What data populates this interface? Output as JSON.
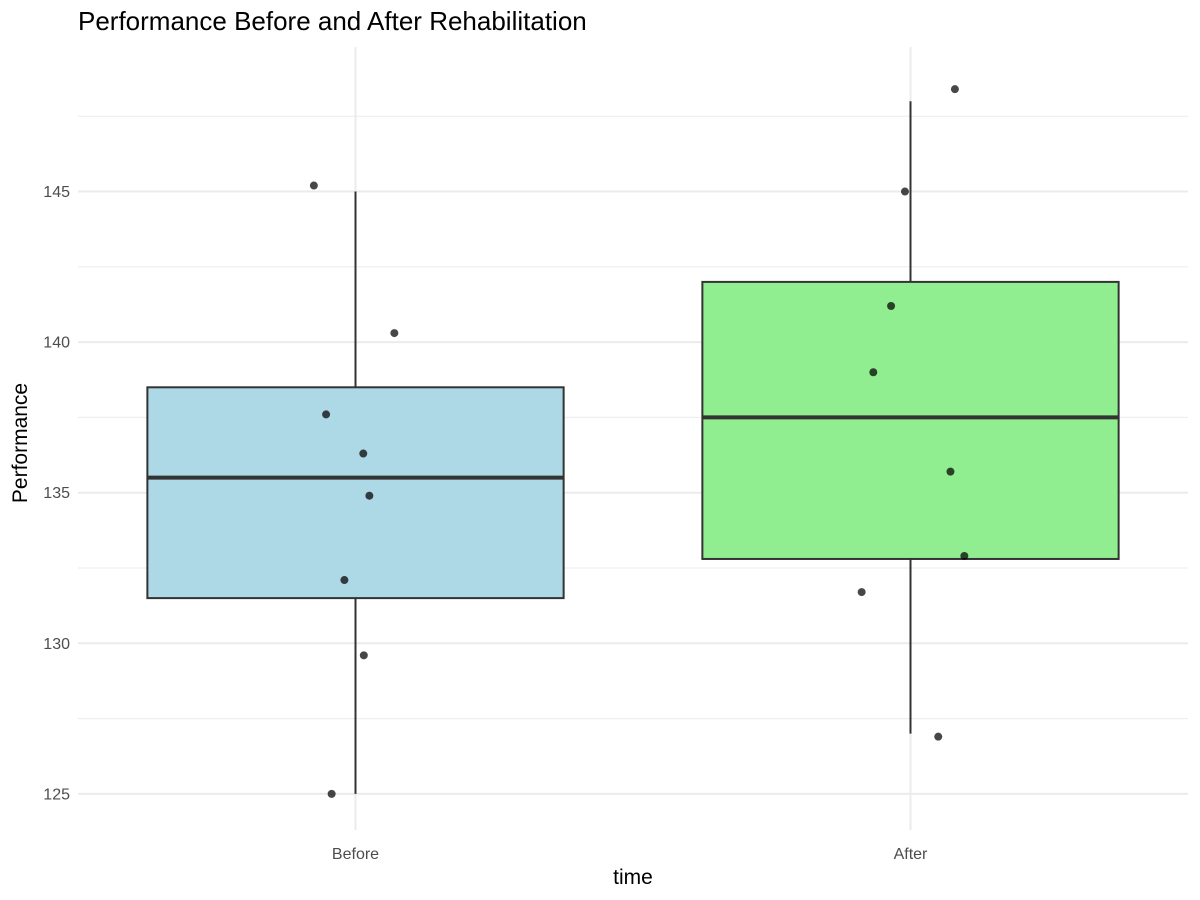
{
  "chart_data": {
    "type": "box",
    "title": "Performance Before and After Rehabilitation",
    "xlabel": "time",
    "ylabel": "Performance",
    "categories": [
      "Before",
      "After"
    ],
    "ylim": [
      123.8,
      149.8
    ],
    "y_ticks": [
      125,
      130,
      135,
      140,
      145
    ],
    "y_minor_ticks": [
      127.5,
      132.5,
      137.5,
      142.5,
      147.5
    ],
    "grid": true,
    "legend": "none",
    "boxes": [
      {
        "category": "Before",
        "color": "#add8e6",
        "whisker_low": 125.0,
        "q1": 131.5,
        "median": 135.5,
        "q3": 138.5,
        "whisker_high": 145.0
      },
      {
        "category": "After",
        "color": "#90ee90",
        "whisker_low": 127.0,
        "q1": 132.8,
        "median": 137.5,
        "q3": 142.0,
        "whisker_high": 148.0
      }
    ],
    "points": [
      {
        "category": "Before",
        "values": [
          145.2,
          140.3,
          137.6,
          136.3,
          134.9,
          132.1,
          129.6,
          125.0
        ]
      },
      {
        "category": "After",
        "values": [
          148.4,
          145.0,
          141.2,
          139.0,
          135.7,
          132.9,
          131.7,
          126.9
        ]
      }
    ],
    "point_jitter": {
      "Before": [
        -0.075,
        0.07,
        -0.053,
        0.014,
        0.025,
        -0.02,
        0.015,
        -0.043
      ],
      "After": [
        0.08,
        -0.01,
        -0.035,
        -0.067,
        0.072,
        0.097,
        -0.088,
        0.05
      ]
    }
  }
}
